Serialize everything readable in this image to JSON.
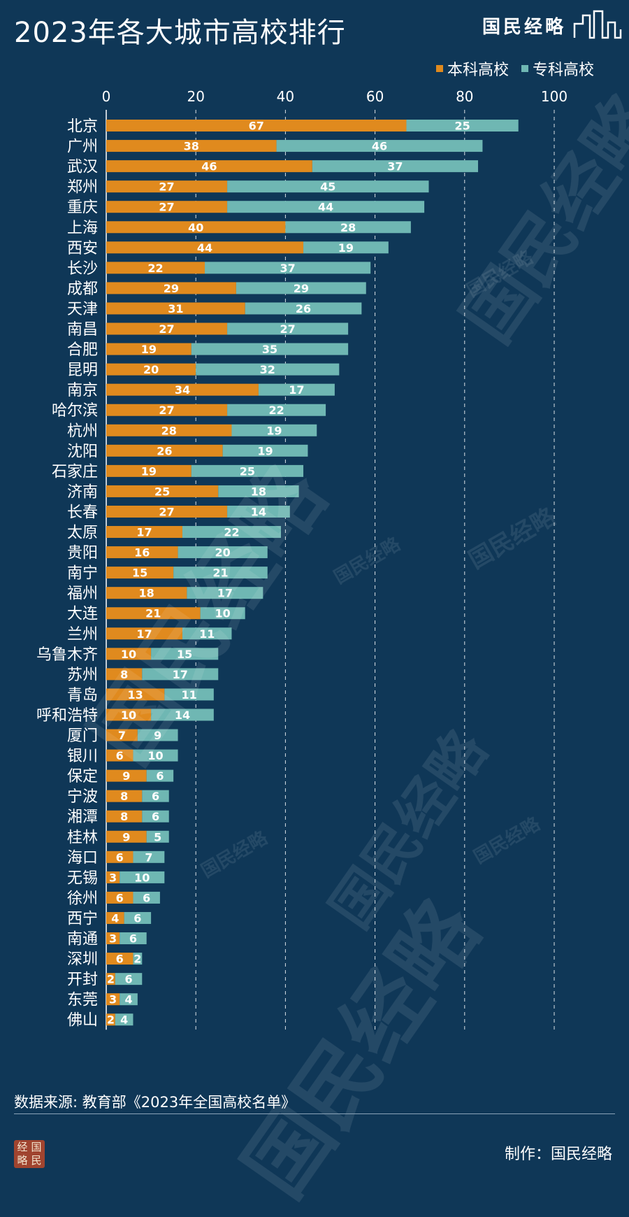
{
  "header": {
    "title": "2023年各大城市高校排行",
    "brand": "国民经略"
  },
  "legend": [
    {
      "name": "本科高校",
      "color": "#e08a1e"
    },
    {
      "name": "专科高校",
      "color": "#6fb7b3"
    }
  ],
  "chart_data": {
    "type": "bar",
    "orientation": "horizontal",
    "stacked": true,
    "xlim": [
      0,
      100
    ],
    "xticks": [
      0,
      20,
      40,
      60,
      80,
      100
    ],
    "grid": true,
    "legend_position": "top-right",
    "categories": [
      "北京",
      "广州",
      "武汉",
      "郑州",
      "重庆",
      "上海",
      "西安",
      "长沙",
      "成都",
      "天津",
      "南昌",
      "合肥",
      "昆明",
      "南京",
      "哈尔滨",
      "杭州",
      "沈阳",
      "石家庄",
      "济南",
      "长春",
      "太原",
      "贵阳",
      "南宁",
      "福州",
      "大连",
      "兰州",
      "乌鲁木齐",
      "苏州",
      "青岛",
      "呼和浩特",
      "厦门",
      "银川",
      "保定",
      "宁波",
      "湘潭",
      "桂林",
      "海口",
      "无锡",
      "徐州",
      "西宁",
      "南通",
      "深圳",
      "开封",
      "东莞",
      "佛山"
    ],
    "series": [
      {
        "name": "本科高校",
        "color": "#e08a1e",
        "values": [
          67,
          38,
          46,
          27,
          27,
          40,
          44,
          22,
          29,
          31,
          27,
          19,
          20,
          34,
          27,
          28,
          26,
          19,
          25,
          27,
          17,
          16,
          15,
          18,
          21,
          17,
          10,
          8,
          13,
          10,
          7,
          6,
          9,
          8,
          8,
          9,
          6,
          3,
          6,
          4,
          3,
          6,
          2,
          3,
          2
        ]
      },
      {
        "name": "专科高校",
        "color": "#6fb7b3",
        "values": [
          25,
          46,
          37,
          45,
          44,
          28,
          19,
          37,
          29,
          26,
          27,
          35,
          32,
          17,
          22,
          19,
          19,
          25,
          18,
          14,
          22,
          20,
          21,
          17,
          10,
          11,
          15,
          17,
          11,
          14,
          9,
          10,
          6,
          6,
          6,
          5,
          7,
          10,
          6,
          6,
          6,
          2,
          6,
          4,
          4
        ]
      }
    ]
  },
  "footer": {
    "source": "数据来源: 教育部《2023年全国高校名单》",
    "maker": "制作：国民经略",
    "logo_chars": [
      "经",
      "国",
      "略",
      "民"
    ]
  },
  "watermark": {
    "text": "国民经略"
  }
}
